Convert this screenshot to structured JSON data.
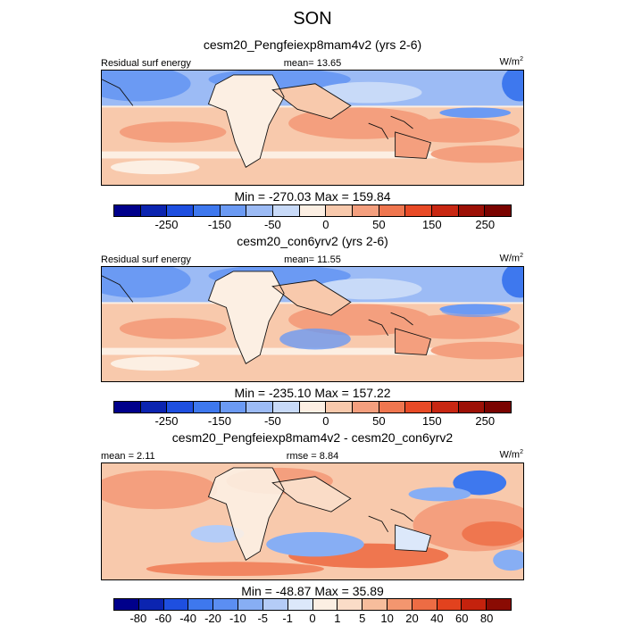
{
  "figure_title": "SON",
  "chart_data": [
    {
      "type": "heatmap",
      "title": "cesm20_Pengfeiexp8mam4v2 (yrs 2-6)",
      "left_label": "Residual surf energy",
      "center_label": "mean=  13.65",
      "units": "W/m",
      "units_sup": "2",
      "min_max_label": "Min = -270.03 Max = 159.84",
      "min": -270.03,
      "max": 159.84,
      "mean": 13.65,
      "colorbar_colors": [
        "#00008b",
        "#0b24b0",
        "#1e4fe0",
        "#3e78ee",
        "#6b9af3",
        "#9cbbf5",
        "#c8daf8",
        "#fcefe3",
        "#f8c9ac",
        "#f49f7e",
        "#ef764f",
        "#e84a26",
        "#c82712",
        "#9c1006",
        "#7a0300"
      ],
      "colorbar_tick_labels": [
        "-250",
        "-150",
        "-50",
        "0",
        "50",
        "150",
        "250"
      ]
    },
    {
      "type": "heatmap",
      "title": "cesm20_con6yrv2 (yrs 2-6)",
      "left_label": "Residual surf energy",
      "center_label": "mean=  11.55",
      "units": "W/m",
      "units_sup": "2",
      "min_max_label": "Min = -235.10 Max = 157.22",
      "min": -235.1,
      "max": 157.22,
      "mean": 11.55,
      "colorbar_colors": [
        "#00008b",
        "#0b24b0",
        "#1e4fe0",
        "#3e78ee",
        "#6b9af3",
        "#9cbbf5",
        "#c8daf8",
        "#fcefe3",
        "#f8c9ac",
        "#f49f7e",
        "#ef764f",
        "#e84a26",
        "#c82712",
        "#9c1006",
        "#7a0300"
      ],
      "colorbar_tick_labels": [
        "-250",
        "-150",
        "-50",
        "0",
        "50",
        "150",
        "250"
      ]
    },
    {
      "type": "heatmap",
      "title": "cesm20_Pengfeiexp8mam4v2 - cesm20_con6yrv2",
      "left_label": "mean =  2.11",
      "center_label": "rmse =  8.84",
      "units": "W/m",
      "units_sup": "2",
      "min_max_label": "Min = -48.87 Max = 35.89",
      "min": -48.87,
      "max": 35.89,
      "mean": 2.11,
      "rmse": 8.84,
      "colorbar_colors": [
        "#00008b",
        "#0b24b0",
        "#1e4fe0",
        "#3e78ee",
        "#5b8ef2",
        "#87aef4",
        "#b4ccf7",
        "#dce8fa",
        "#fcefe3",
        "#fadcc7",
        "#f7bd9c",
        "#f3966f",
        "#ed6c44",
        "#e2421e",
        "#c4220d",
        "#8a0b03"
      ],
      "colorbar_tick_labels": [
        "-80",
        "-60",
        "-40",
        "-20",
        "-10",
        "-5",
        "-1",
        "0",
        "1",
        "5",
        "10",
        "20",
        "40",
        "60",
        "80"
      ]
    }
  ]
}
